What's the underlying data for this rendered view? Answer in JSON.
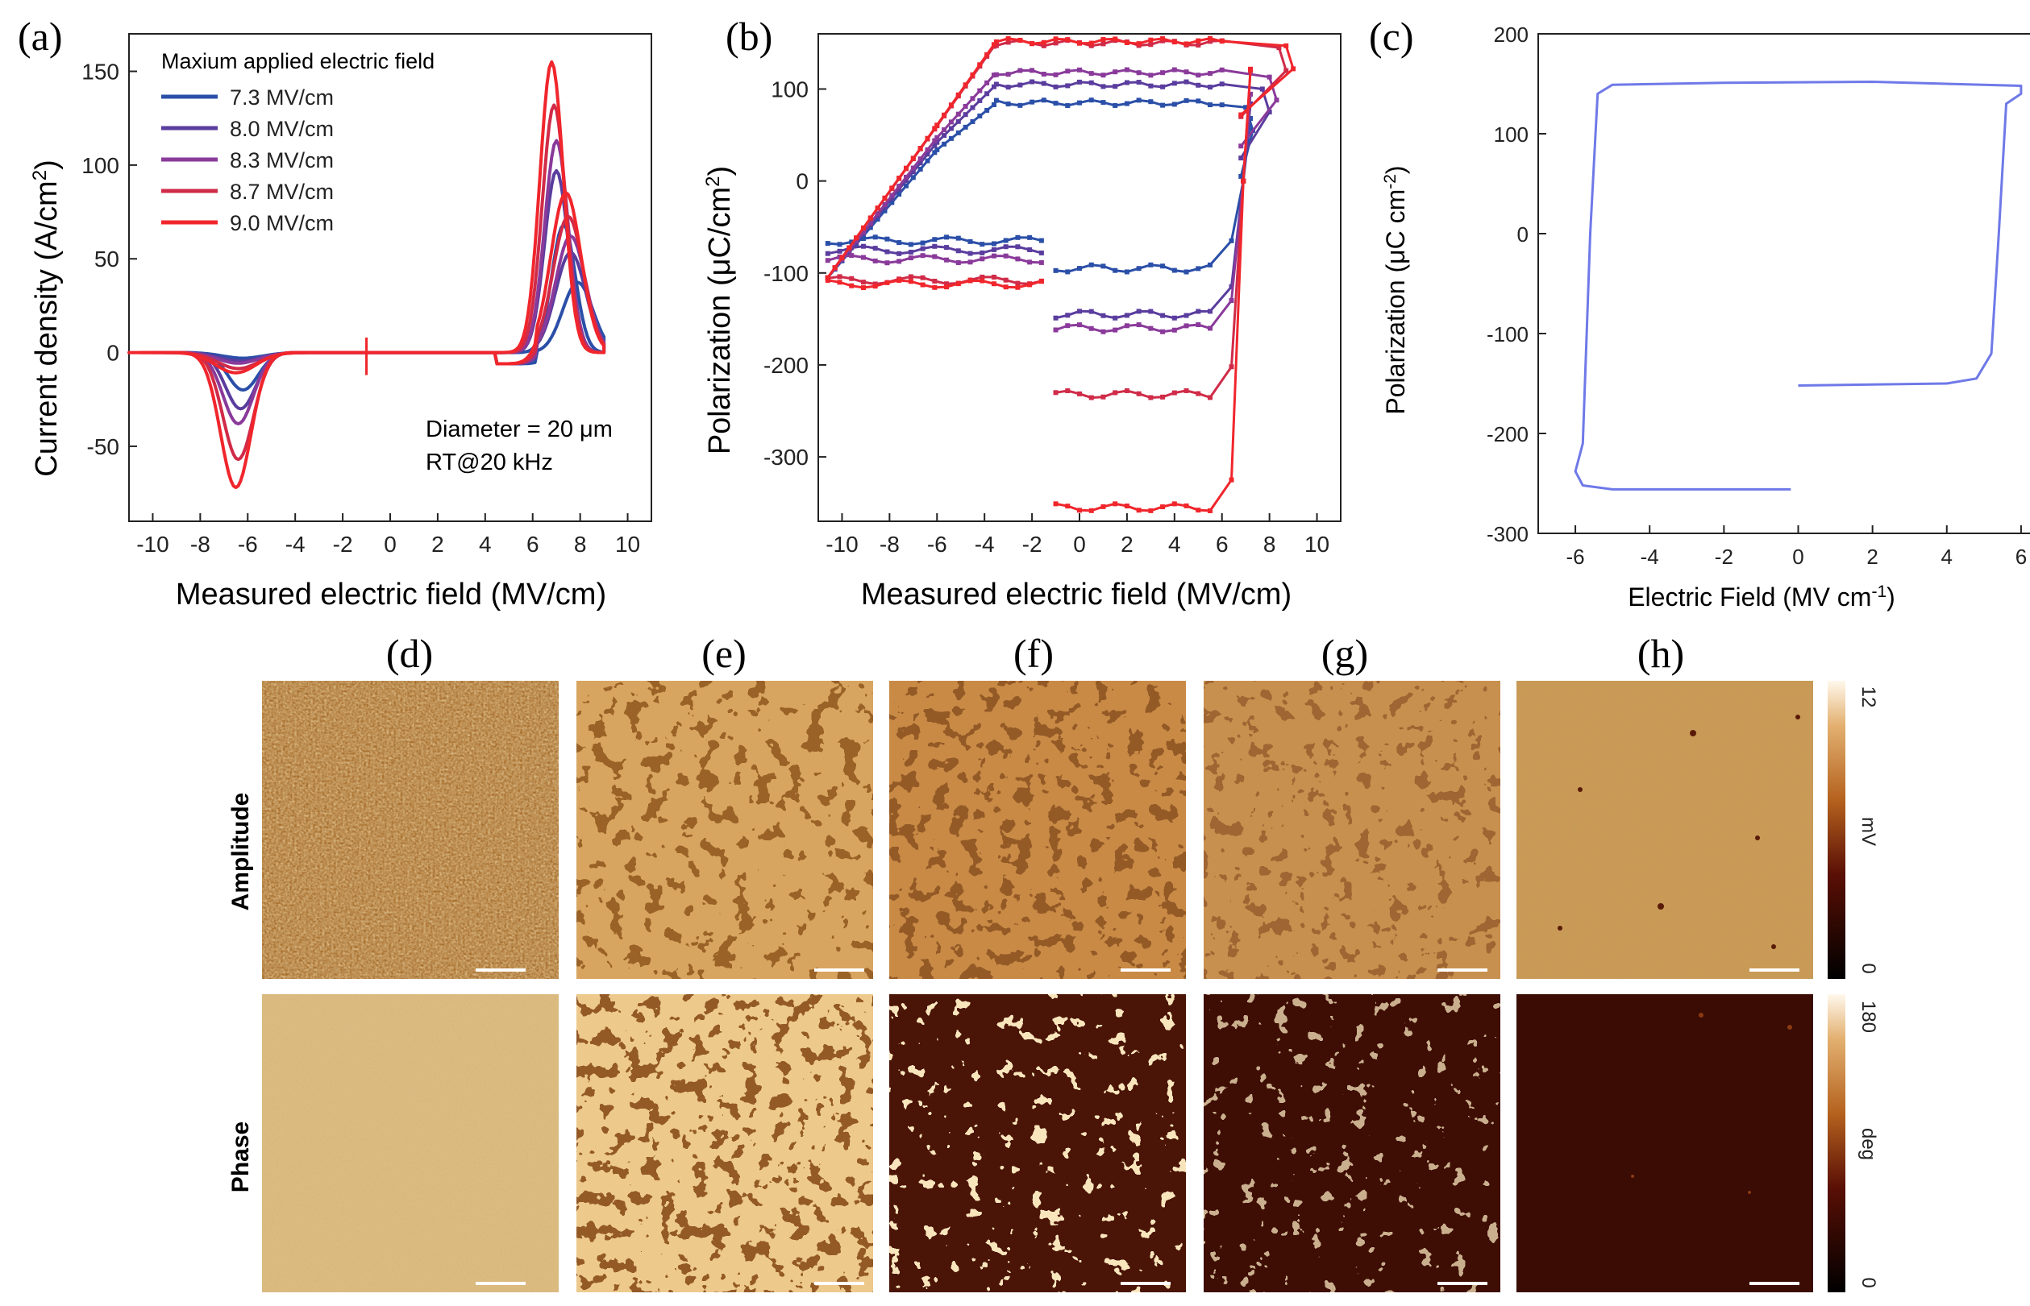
{
  "panels": {
    "a": {
      "label": "(a)",
      "xlabel": "Measured electric field (MV/cm)",
      "ylabel": "Current density (A/cm²)",
      "ylabel_main": "Current density (A/cm",
      "ylabel_sup": "2",
      "ylabel_end": ")",
      "legend_title": "Maxium applied electric field",
      "legend": [
        "7.3 MV/cm",
        "8.0 MV/cm",
        "8.3 MV/cm",
        "8.7 MV/cm",
        "9.0 MV/cm"
      ],
      "annotation1": "Diameter = 20 μm",
      "annotation2": "RT@20 kHz",
      "xticks": [
        "-10",
        "-8",
        "-6",
        "-4",
        "-2",
        "0",
        "2",
        "4",
        "6",
        "8",
        "10"
      ],
      "yticks": [
        "-50",
        "0",
        "50",
        "100",
        "150"
      ]
    },
    "b": {
      "label": "(b)",
      "xlabel": "Measured electric field (MV/cm)",
      "ylabel_main": "Polarization (μC/cm",
      "ylabel_sup": "2",
      "ylabel_end": ")",
      "xticks": [
        "-10",
        "-8",
        "-6",
        "-4",
        "-2",
        "0",
        "2",
        "4",
        "6",
        "8",
        "10"
      ],
      "yticks": [
        "-300",
        "-200",
        "-100",
        "0",
        "100"
      ]
    },
    "c": {
      "label": "(c)",
      "xlabel_main": "Electric Field (MV cm",
      "xlabel_sup": "-1",
      "xlabel_end": ")",
      "ylabel_main": "Polarization (μC cm",
      "ylabel_sup": "-2",
      "ylabel_end": ")",
      "xticks": [
        "-6",
        "-4",
        "-2",
        "0",
        "2",
        "4",
        "6"
      ],
      "yticks": [
        "-300",
        "-200",
        "-100",
        "0",
        "100",
        "200"
      ]
    },
    "images": {
      "labels": [
        "(d)",
        "(e)",
        "(f)",
        "(g)",
        "(h)"
      ],
      "row_amplitude": "Amplitude",
      "row_phase": "Phase",
      "cb_amp_max": "12",
      "cb_amp_unit": "mV",
      "cb_amp_min": "0",
      "cb_ph_max": "180",
      "cb_ph_unit": "deg",
      "cb_ph_min": "0"
    }
  },
  "colors": {
    "s73": "#2b4fa8",
    "s80": "#5a3d9e",
    "s83": "#8a3a9a",
    "s87": "#d02b48",
    "s90": "#f0262c",
    "c_loop": "#6f79e8"
  },
  "chart_data": [
    {
      "type": "line",
      "title": "(a)",
      "xlabel": "Measured electric field (MV/cm)",
      "ylabel": "Current density (A/cm²)",
      "xlim": [
        -11,
        11
      ],
      "ylim": [
        -90,
        170
      ],
      "series": [
        {
          "name": "7.3 MV/cm",
          "peak_pos": 68,
          "peak_pos_x": 7.3,
          "peak_neg": -20,
          "peak_neg_x": -6.2,
          "xmin": -9
        },
        {
          "name": "8.0 MV/cm",
          "peak_pos": 97,
          "peak_pos_x": 7.0,
          "peak_neg": -30,
          "peak_neg_x": -6.3,
          "xmin": -9.5
        },
        {
          "name": "8.3 MV/cm",
          "peak_pos": 113,
          "peak_pos_x": 7.0,
          "peak_neg": -38,
          "peak_neg_x": -6.4,
          "xmin": -10
        },
        {
          "name": "8.7 MV/cm",
          "peak_pos": 132,
          "peak_pos_x": 6.9,
          "peak_neg": -57,
          "peak_neg_x": -6.4,
          "xmin": -10.5
        },
        {
          "name": "9.0 MV/cm",
          "peak_pos": 155,
          "peak_pos_x": 6.8,
          "peak_neg": -72,
          "peak_neg_x": -6.5,
          "xmin": -11
        }
      ]
    },
    {
      "type": "line",
      "title": "(b)",
      "xlabel": "Measured electric field (MV/cm)",
      "ylabel": "Polarization (μC/cm²)",
      "xlim": [
        -11,
        11
      ],
      "ylim": [
        -370,
        160
      ],
      "series": [
        {
          "name": "7.3 MV/cm",
          "p_sat_top": 85,
          "p_left_branch": -65,
          "p_bottom_right": -95,
          "x_end": 7.3
        },
        {
          "name": "8.0 MV/cm",
          "p_sat_top": 105,
          "p_left_branch": -75,
          "p_bottom_right": -145,
          "x_end": 8.0
        },
        {
          "name": "8.3 MV/cm",
          "p_sat_top": 118,
          "p_left_branch": -85,
          "p_bottom_right": -160,
          "x_end": 8.3
        },
        {
          "name": "8.7 MV/cm",
          "p_sat_top": 150,
          "p_left_branch": -108,
          "p_bottom_right": -232,
          "x_end": 8.7
        },
        {
          "name": "9.0 MV/cm",
          "p_sat_top": 152,
          "p_left_branch": -112,
          "p_bottom_right": -355,
          "x_end": 9.0
        }
      ]
    },
    {
      "type": "line",
      "title": "(c)",
      "xlabel": "Electric Field (MV cm⁻¹)",
      "ylabel": "Polarization (μC cm⁻²)",
      "xlim": [
        -7,
        7
      ],
      "ylim": [
        -300,
        200
      ],
      "series": [
        {
          "name": "P-E loop",
          "x": [
            0,
            4,
            4.8,
            5.2,
            5.4,
            5.6,
            6.0,
            6.0,
            2,
            -2,
            -5,
            -5.4,
            -5.6,
            -5.8,
            -6.0,
            -5.8,
            -5,
            -3,
            -0.2
          ],
          "y": [
            -152,
            -150,
            -145,
            -120,
            0,
            130,
            140,
            148,
            152,
            151,
            149,
            140,
            0,
            -210,
            -238,
            -252,
            -256,
            -256,
            -256
          ]
        }
      ]
    }
  ]
}
